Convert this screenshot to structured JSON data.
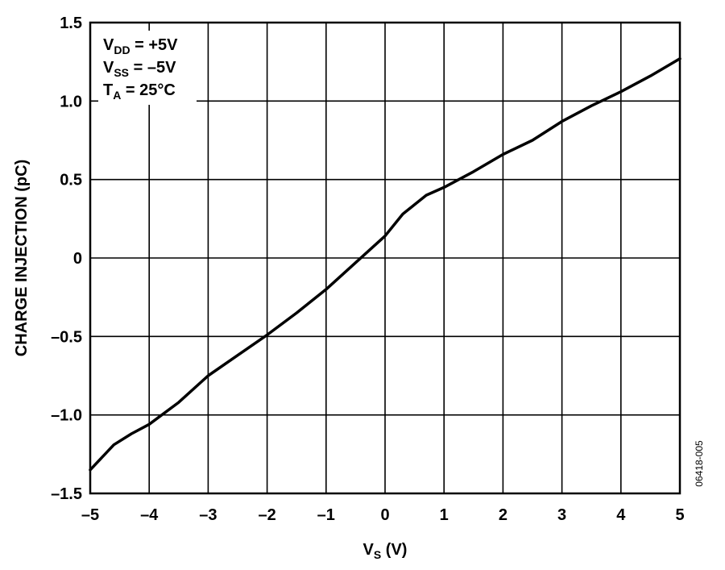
{
  "chart_data": {
    "type": "line",
    "title": "",
    "xlabel": {
      "main": "V",
      "sub": "S",
      "rest": " (V)"
    },
    "ylabel": "CHARGE INJECTION (pC)",
    "xlim": [
      -5,
      5
    ],
    "ylim": [
      -1.5,
      1.5
    ],
    "x_ticks": [
      -5,
      -4,
      -3,
      -2,
      -1,
      0,
      1,
      2,
      3,
      4,
      5
    ],
    "x_tick_labels": [
      "–5",
      "–4",
      "–3",
      "–2",
      "–1",
      "0",
      "1",
      "2",
      "3",
      "4",
      "5"
    ],
    "y_ticks": [
      -1.5,
      -1.0,
      -0.5,
      0,
      0.5,
      1.0,
      1.5
    ],
    "y_tick_labels": [
      "–1.5",
      "–1.0",
      "–0.5",
      "0",
      "0.5",
      "1.0",
      "1.5"
    ],
    "grid": true,
    "legend": "none",
    "series": [
      {
        "color": "#000000",
        "x": [
          -5,
          -4.6,
          -4.3,
          -4,
          -3.5,
          -3,
          -2.5,
          -2,
          -1.5,
          -1,
          -0.5,
          0,
          0.3,
          0.7,
          1,
          1.5,
          2,
          2.5,
          3,
          3.5,
          4,
          4.5,
          5
        ],
        "y": [
          -1.35,
          -1.19,
          -1.12,
          -1.06,
          -0.92,
          -0.75,
          -0.62,
          -0.49,
          -0.35,
          -0.2,
          -0.03,
          0.14,
          0.28,
          0.4,
          0.45,
          0.55,
          0.66,
          0.75,
          0.87,
          0.97,
          1.06,
          1.16,
          1.27
        ]
      }
    ],
    "annotations": [
      {
        "main": "V",
        "sub": "DD",
        "rest": " = +5V"
      },
      {
        "main": "V",
        "sub": "SS",
        "rest": " = –5V"
      },
      {
        "main": "T",
        "sub": "A",
        "rest": " = 25°C"
      }
    ],
    "figure_id": "06418-005"
  }
}
